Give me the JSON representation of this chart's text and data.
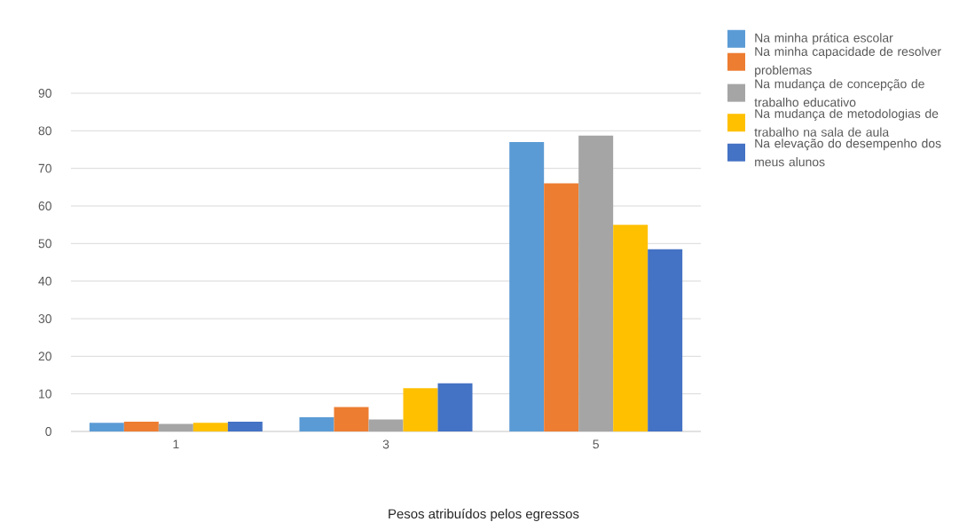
{
  "chart_data": {
    "type": "bar",
    "xlabel": "Pesos atribuídos pelos egressos",
    "categories": [
      "1",
      "3",
      "5"
    ],
    "series": [
      {
        "name": "Na minha prática escolar",
        "color": "#5b9bd5",
        "values": [
          2.3,
          3.8,
          77
        ]
      },
      {
        "name": "Na minha capacidade de resolver problemas",
        "color": "#ed7d31",
        "values": [
          2.6,
          6.5,
          66
        ]
      },
      {
        "name": "Na mudança de concepção de trabalho educativo",
        "color": "#a5a5a5",
        "values": [
          2,
          3.2,
          78.7
        ]
      },
      {
        "name": "Na mudança de metodologias de trabalho na sala de aula",
        "color": "#ffc000",
        "values": [
          2.3,
          11.5,
          55
        ]
      },
      {
        "name": "Na elevação do desempenho dos meus alunos",
        "color": "#4472c4",
        "values": [
          2.6,
          12.8,
          48.5
        ]
      }
    ],
    "ylim": [
      0,
      90
    ],
    "yticks": [
      0,
      10,
      20,
      30,
      40,
      50,
      60,
      70,
      80,
      90
    ],
    "grid": "y",
    "legend": "right"
  }
}
